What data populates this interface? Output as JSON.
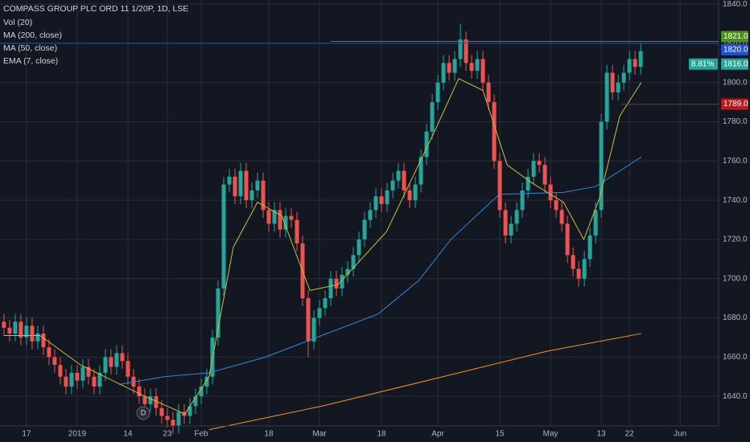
{
  "chart_data": {
    "type": "candlestick",
    "title": "COMPASS GROUP PLC ORD 11 1/20P, 1D, LSE",
    "indicators": [
      "Vol (20)",
      "MA (200, close)",
      "MA (50, close)",
      "EMA (7, close)"
    ],
    "up_color": "#26a69a",
    "down_color": "#ef5350",
    "grid": true,
    "ylim": [
      1624.9,
      1842.1
    ],
    "yticks": [
      {
        "value": 1640,
        "label": "1640.0"
      },
      {
        "value": 1660,
        "label": "1660.0"
      },
      {
        "value": 1680,
        "label": "1680.0"
      },
      {
        "value": 1700,
        "label": "1700.0"
      },
      {
        "value": 1720,
        "label": "1720.0"
      },
      {
        "value": 1740,
        "label": "1740.0"
      },
      {
        "value": 1760,
        "label": "1760.0"
      },
      {
        "value": 1780,
        "label": "1780.0"
      },
      {
        "value": 1800,
        "label": "1800.0"
      },
      {
        "value": 1820,
        "label": "1820.0"
      },
      {
        "value": 1840,
        "label": "1840.0"
      }
    ],
    "xlim": [
      -0.7,
      132.4
    ],
    "xticks": [
      {
        "value": 4,
        "label": "17"
      },
      {
        "value": 13,
        "label": "2019"
      },
      {
        "value": 22,
        "label": "14"
      },
      {
        "value": 29,
        "label": "23"
      },
      {
        "value": 35,
        "label": "Feb"
      },
      {
        "value": 47,
        "label": "18"
      },
      {
        "value": 56,
        "label": "Mar"
      },
      {
        "value": 67,
        "label": "18"
      },
      {
        "value": 77,
        "label": "Apr"
      },
      {
        "value": 88,
        "label": "15"
      },
      {
        "value": 97,
        "label": "May"
      },
      {
        "value": 106,
        "label": "13"
      },
      {
        "value": 111,
        "label": "22"
      },
      {
        "value": 120,
        "label": "Jun"
      }
    ],
    "open": [
      1678,
      1675,
      1672,
      1678,
      1670,
      1676,
      1668,
      1672,
      1665,
      1660,
      1656,
      1650,
      1645,
      1652,
      1648,
      1655,
      1650,
      1645,
      1652,
      1660,
      1655,
      1662,
      1658,
      1650,
      1645,
      1640,
      1636,
      1640,
      1634,
      1630,
      1628,
      1625,
      1632,
      1630,
      1635,
      1640,
      1645,
      1650,
      1670,
      1695,
      1748,
      1752,
      1742,
      1755,
      1740,
      1745,
      1750,
      1735,
      1728,
      1735,
      1725,
      1732,
      1730,
      1718,
      1690,
      1668,
      1680,
      1685,
      1690,
      1700,
      1695,
      1702,
      1705,
      1712,
      1720,
      1730,
      1735,
      1742,
      1738,
      1745,
      1750,
      1755,
      1745,
      1740,
      1748,
      1762,
      1775,
      1790,
      1800,
      1810,
      1805,
      1812,
      1822,
      1810,
      1806,
      1812,
      1800,
      1790,
      1760,
      1735,
      1722,
      1728,
      1735,
      1745,
      1752,
      1760,
      1758,
      1748,
      1740,
      1735,
      1728,
      1712,
      1705,
      1700,
      1710,
      1722,
      1735,
      1780,
      1805,
      1795,
      1800,
      1805,
      1812,
      1808
    ],
    "high": [
      1682,
      1679,
      1682,
      1682,
      1680,
      1680,
      1676,
      1676,
      1669,
      1664,
      1660,
      1654,
      1656,
      1656,
      1659,
      1659,
      1654,
      1656,
      1664,
      1664,
      1666,
      1666,
      1662,
      1654,
      1649,
      1644,
      1644,
      1644,
      1638,
      1634,
      1632,
      1636,
      1636,
      1639,
      1644,
      1649,
      1654,
      1674,
      1699,
      1752,
      1756,
      1756,
      1759,
      1759,
      1749,
      1754,
      1754,
      1739,
      1739,
      1739,
      1736,
      1736,
      1734,
      1722,
      1694,
      1684,
      1689,
      1694,
      1704,
      1704,
      1706,
      1709,
      1716,
      1724,
      1734,
      1739,
      1746,
      1746,
      1749,
      1754,
      1759,
      1759,
      1749,
      1752,
      1766,
      1779,
      1794,
      1804,
      1814,
      1814,
      1816,
      1830,
      1826,
      1814,
      1816,
      1816,
      1804,
      1794,
      1764,
      1739,
      1732,
      1739,
      1749,
      1756,
      1764,
      1764,
      1762,
      1752,
      1744,
      1739,
      1732,
      1716,
      1709,
      1714,
      1726,
      1739,
      1784,
      1809,
      1809,
      1804,
      1809,
      1816,
      1816,
      1820
    ],
    "low": [
      1671,
      1668,
      1668,
      1666,
      1666,
      1664,
      1664,
      1661,
      1656,
      1652,
      1646,
      1641,
      1641,
      1644,
      1644,
      1646,
      1641,
      1641,
      1648,
      1651,
      1651,
      1654,
      1646,
      1641,
      1636,
      1632,
      1632,
      1630,
      1626,
      1624,
      1621,
      1621,
      1626,
      1626,
      1631,
      1636,
      1641,
      1646,
      1666,
      1691,
      1744,
      1738,
      1738,
      1736,
      1736,
      1741,
      1731,
      1724,
      1724,
      1721,
      1721,
      1726,
      1714,
      1686,
      1660,
      1664,
      1676,
      1681,
      1686,
      1691,
      1691,
      1698,
      1701,
      1708,
      1716,
      1726,
      1731,
      1734,
      1734,
      1741,
      1746,
      1741,
      1736,
      1736,
      1744,
      1758,
      1771,
      1786,
      1796,
      1801,
      1801,
      1808,
      1806,
      1802,
      1802,
      1796,
      1786,
      1756,
      1731,
      1718,
      1718,
      1724,
      1731,
      1741,
      1748,
      1754,
      1744,
      1736,
      1731,
      1724,
      1708,
      1701,
      1696,
      1696,
      1706,
      1718,
      1731,
      1776,
      1791,
      1791,
      1796,
      1801,
      1804,
      1804
    ],
    "close": [
      1675,
      1672,
      1678,
      1670,
      1676,
      1668,
      1672,
      1665,
      1660,
      1656,
      1650,
      1645,
      1652,
      1648,
      1655,
      1650,
      1645,
      1652,
      1660,
      1655,
      1662,
      1658,
      1650,
      1645,
      1640,
      1636,
      1640,
      1634,
      1630,
      1628,
      1625,
      1632,
      1630,
      1635,
      1640,
      1645,
      1650,
      1670,
      1695,
      1748,
      1752,
      1742,
      1755,
      1740,
      1745,
      1750,
      1735,
      1728,
      1735,
      1725,
      1732,
      1730,
      1718,
      1690,
      1668,
      1680,
      1685,
      1690,
      1700,
      1695,
      1702,
      1705,
      1712,
      1720,
      1730,
      1735,
      1742,
      1738,
      1745,
      1750,
      1755,
      1745,
      1740,
      1748,
      1762,
      1775,
      1790,
      1800,
      1810,
      1805,
      1812,
      1822,
      1810,
      1806,
      1812,
      1800,
      1790,
      1760,
      1735,
      1722,
      1728,
      1735,
      1745,
      1752,
      1760,
      1758,
      1748,
      1740,
      1735,
      1728,
      1712,
      1705,
      1700,
      1710,
      1722,
      1735,
      1780,
      1805,
      1795,
      1800,
      1805,
      1812,
      1808,
      1816
    ],
    "lines": [
      {
        "name": "MA (200, close)",
        "color": "#f7931a",
        "x": [
          36.4,
          56.4,
          77.9,
          96.4,
          113.1
        ],
        "values": [
          1623,
          1635,
          1650,
          1663,
          1672
        ]
      },
      {
        "name": "MA (50, close)",
        "color": "#2f89d8",
        "x": [
          20.4,
          28.4,
          36.4,
          46.4,
          56.4,
          66.4,
          73.6,
          79.3,
          87.9,
          99.3,
          105,
          113.1
        ],
        "values": [
          1646,
          1650,
          1652,
          1660,
          1671,
          1682,
          1699,
          1720,
          1743,
          1744,
          1747,
          1762
        ]
      },
      {
        "name": "EMA (7, close)",
        "color": "#c9c13a",
        "x": [
          0,
          6.4,
          13.6,
          25,
          32.1,
          36.4,
          40.7,
          45,
          49.3,
          54.3,
          59.3,
          67.9,
          76.4,
          80.7,
          85,
          89.3,
          93.6,
          99.3,
          102.9,
          105.7,
          109.3,
          113.1
        ],
        "values": [
          1671,
          1671,
          1656,
          1640,
          1631,
          1650,
          1716,
          1739,
          1732,
          1694,
          1697,
          1724,
          1775,
          1802,
          1796,
          1758,
          1749,
          1739,
          1720,
          1741,
          1783,
          1800
        ]
      }
    ],
    "price_lines": [
      {
        "value": 1821,
        "label": "1821.0",
        "color": "#4c8f1f"
      },
      {
        "value": 1820,
        "label": "1820.0",
        "color": "#1e50d6"
      },
      {
        "value": 1789,
        "label": "1789.0",
        "color": "#b71c1c"
      }
    ],
    "last_price": {
      "value": 1816,
      "label": "1816.0",
      "change_label": "8.81%",
      "color": "#26a69a"
    }
  }
}
